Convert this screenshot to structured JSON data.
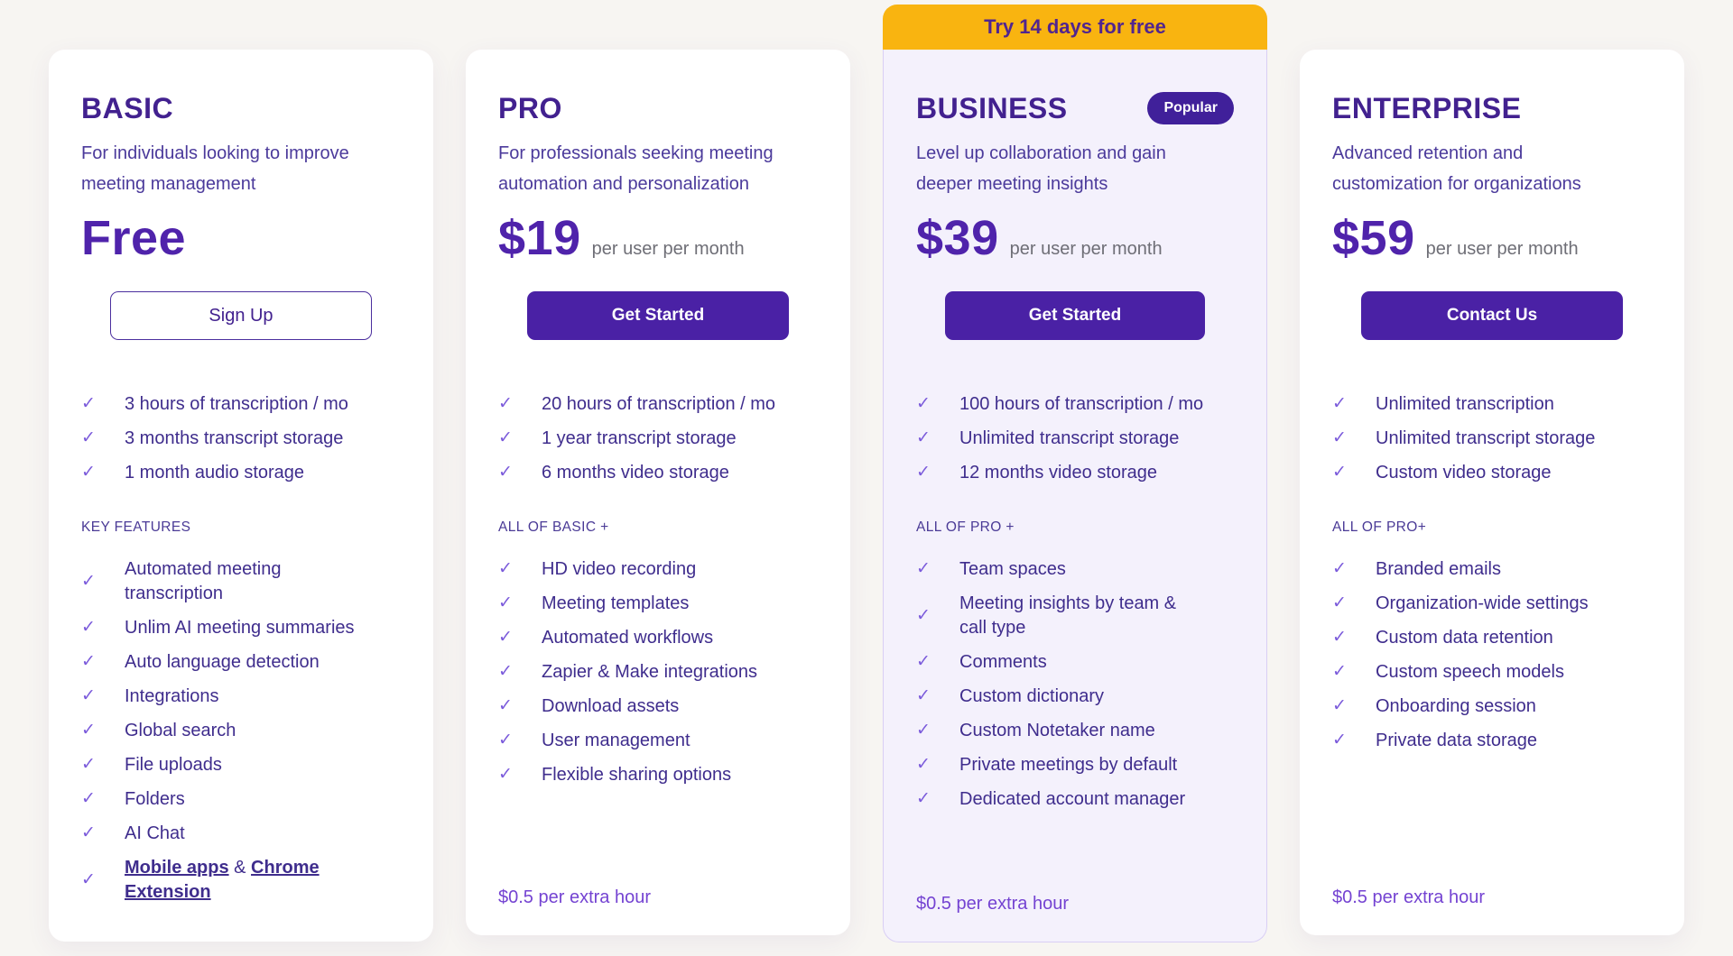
{
  "icons": {
    "check": "✓"
  },
  "colors": {
    "page_background": "#f7f5f2",
    "accent_purple": "#4a21a5",
    "title_purple": "#42218f",
    "banner_amber": "#f9b410",
    "business_card_bg": "#f4f1fc",
    "muted_gray": "#6e6e76"
  },
  "plans": [
    {
      "name": "BASIC",
      "description": "For individuals looking to improve meeting management",
      "price": "Free",
      "price_suffix": "",
      "cta_label": "Sign Up",
      "top_features": [
        "3 hours of transcription / mo",
        "3 months transcript storage",
        "1 month audio storage"
      ],
      "section_label": "KEY FEATURES",
      "features": [
        "Automated meeting transcription",
        "Unlim AI meeting summaries",
        "Auto language detection",
        "Integrations",
        "Global search",
        "File uploads",
        "Folders",
        "AI Chat"
      ],
      "links_feature": {
        "link1": "Mobile apps",
        "sep": " & ",
        "link2": "Chrome Extension"
      }
    },
    {
      "name": "PRO",
      "description": "For professionals seeking meeting automation and personalization",
      "price": "$19",
      "price_suffix": "per user per month",
      "cta_label": "Get Started",
      "top_features": [
        "20 hours of transcription / mo",
        "1 year transcript storage",
        "6 months video storage"
      ],
      "section_label": "ALL OF BASIC +",
      "features": [
        "HD video recording",
        "Meeting templates",
        "Automated workflows",
        "Zapier & Make integrations",
        "Download assets",
        "User management",
        "Flexible sharing options"
      ],
      "footer_note": "$0.5 per extra hour"
    },
    {
      "name": "BUSINESS",
      "banner": "Try 14 days for free",
      "badge": "Popular",
      "description": "Level up collaboration and gain deeper meeting insights",
      "price": "$39",
      "price_suffix": "per user per month",
      "cta_label": "Get Started",
      "top_features": [
        "100 hours of transcription / mo",
        "Unlimited transcript storage",
        "12 months video storage"
      ],
      "section_label": "ALL OF PRO +",
      "features": [
        "Team spaces",
        "Meeting insights by team & call type",
        "Comments",
        "Custom dictionary",
        "Custom Notetaker name",
        "Private meetings by default",
        "Dedicated account manager"
      ],
      "footer_note": "$0.5 per extra hour"
    },
    {
      "name": "ENTERPRISE",
      "description": "Advanced retention and customization for organizations",
      "price": "$59",
      "price_suffix": "per user per month",
      "cta_label": "Contact Us",
      "top_features": [
        "Unlimited transcription",
        "Unlimited transcript storage",
        "Custom video storage"
      ],
      "section_label": "ALL OF PRO+",
      "features": [
        "Branded emails",
        "Organization-wide settings",
        "Custom data retention",
        "Custom speech models",
        "Onboarding session",
        "Private data storage"
      ],
      "footer_note": "$0.5 per extra hour"
    }
  ]
}
